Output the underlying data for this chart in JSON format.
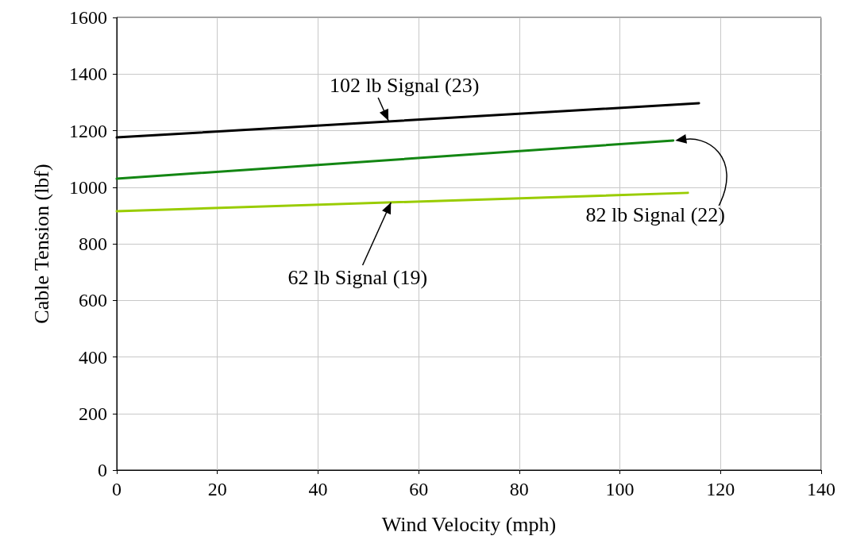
{
  "chart_data": {
    "type": "line",
    "xlabel": "Wind Velocity (mph)",
    "ylabel": "Cable Tension (lbf)",
    "xlim": [
      0,
      140
    ],
    "xticks": [
      0,
      20,
      40,
      60,
      80,
      100,
      120,
      140
    ],
    "ylim": [
      0,
      1600
    ],
    "yticks": [
      0,
      200,
      400,
      600,
      800,
      1000,
      1200,
      1400,
      1600
    ],
    "grid": true,
    "marker": "none",
    "line_style": "solid",
    "series": [
      {
        "color": "#000000",
        "x": [
          0,
          115.7
        ],
        "values": [
          1176,
          1297
        ]
      },
      {
        "color": "#138613",
        "x": [
          0,
          110.6
        ],
        "values": [
          1030,
          1165
        ]
      },
      {
        "color": "#99cc00",
        "x": [
          0,
          113.5
        ],
        "values": [
          915,
          980
        ]
      }
    ],
    "annotations": [
      {
        "text": "102 lb Signal (23)",
        "x": 54,
        "y": 1235
      },
      {
        "text": "82 lb Signal (22)",
        "x": 111,
        "y": 1165
      },
      {
        "text": "62 lb Signal (19)",
        "x": 54.5,
        "y": 946
      }
    ]
  }
}
